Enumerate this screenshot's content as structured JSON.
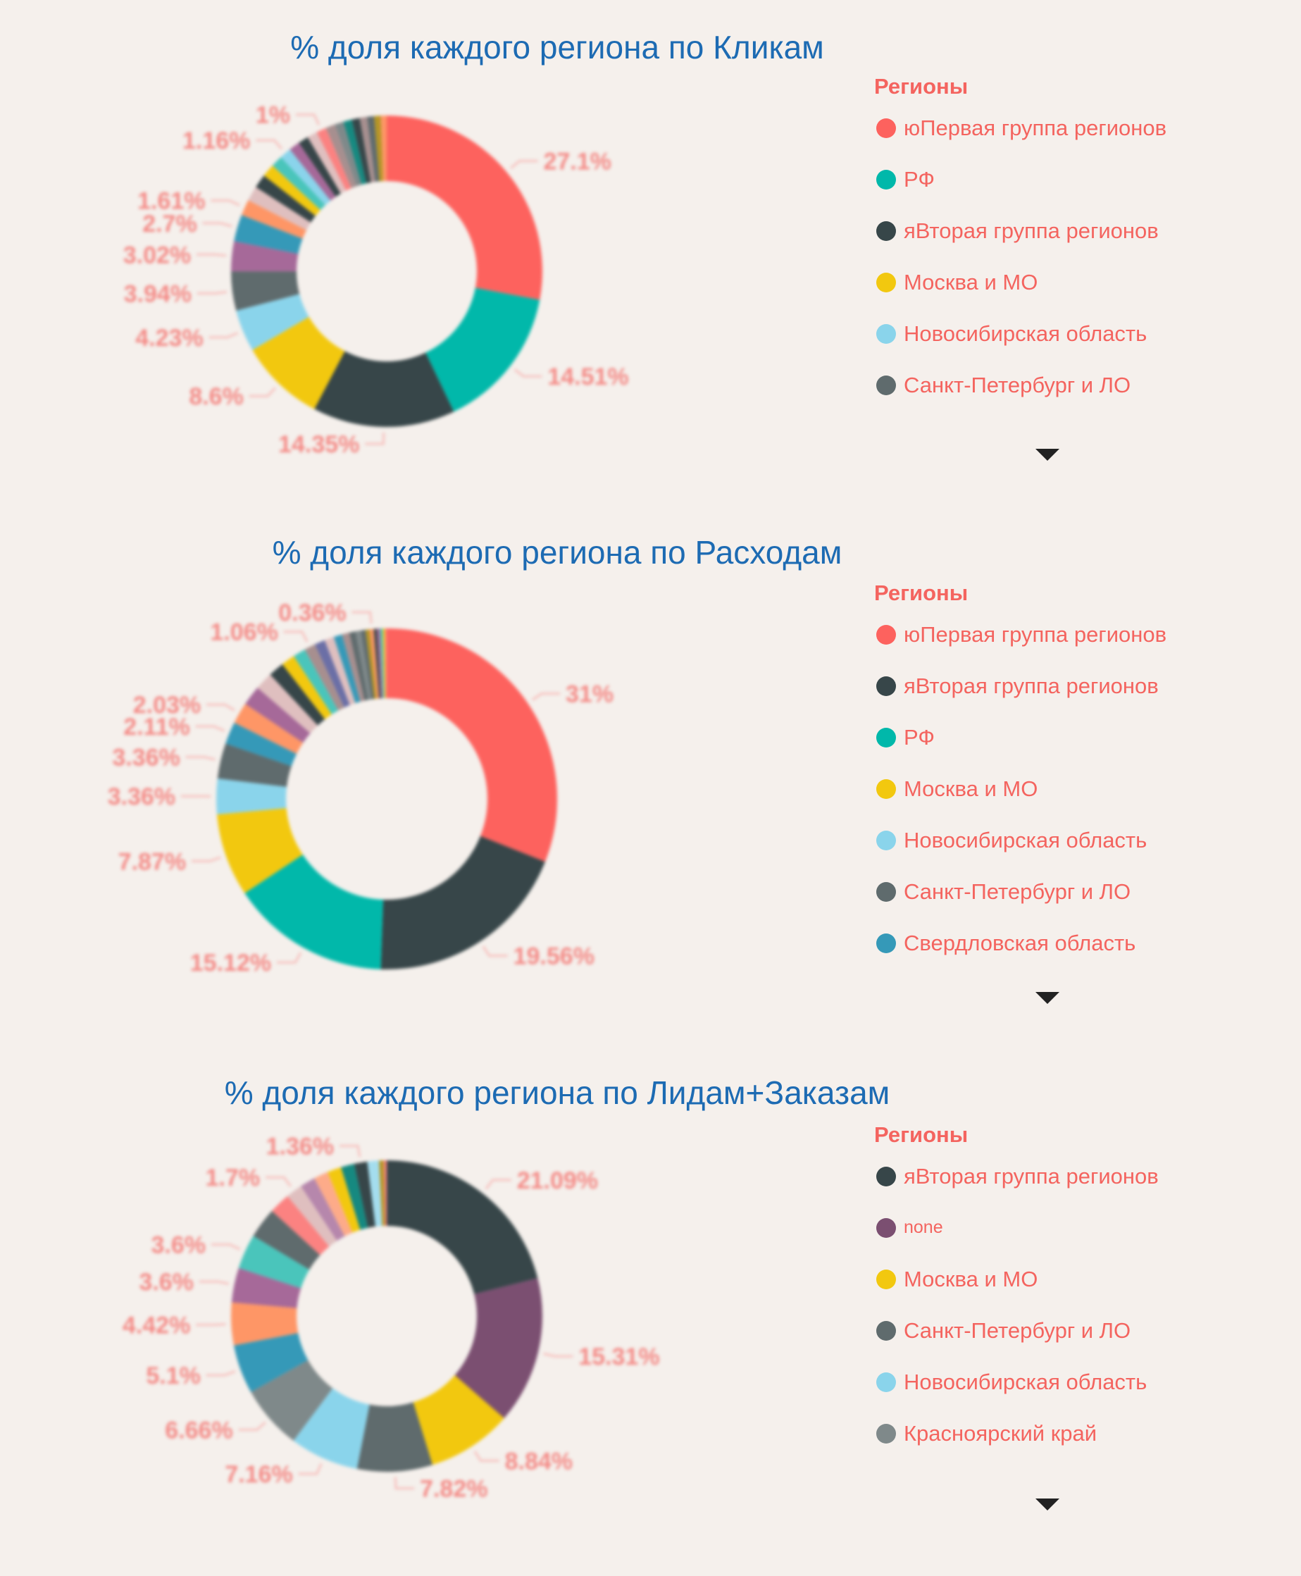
{
  "background": "#f5f0ec",
  "chart_data": [
    {
      "type": "pie",
      "donut": true,
      "title": "% доля каждого региона по Кликам",
      "legend_title": "Регионы",
      "legend_placement": "right",
      "legend": [
        {
          "name": "юПервая группа регионов",
          "color": "#fd625e"
        },
        {
          "name": "РФ",
          "color": "#01b8aa"
        },
        {
          "name": "яВторая группа регионов",
          "color": "#374649"
        },
        {
          "name": "Москва и МО",
          "color": "#f2c80f"
        },
        {
          "name": "Новосибирская область",
          "color": "#8ad4eb"
        },
        {
          "name": "Санкт-Петербург и ЛО",
          "color": "#5f6b6d"
        }
      ],
      "slices": [
        {
          "value": 27.1,
          "label": "27.1%",
          "color": "#fd625e"
        },
        {
          "value": 14.51,
          "label": "14.51%",
          "color": "#01b8aa"
        },
        {
          "value": 14.35,
          "label": "14.35%",
          "color": "#374649"
        },
        {
          "value": 8.6,
          "label": "8.6%",
          "color": "#f2c80f"
        },
        {
          "value": 4.23,
          "label": "4.23%",
          "color": "#8ad4eb"
        },
        {
          "value": 3.94,
          "label": "3.94%",
          "color": "#5f6b6d"
        },
        {
          "value": 3.02,
          "label": "3.02%",
          "color": "#a66999"
        },
        {
          "value": 2.7,
          "label": "2.7%",
          "color": "#3599b8"
        },
        {
          "value": 1.61,
          "label": "1.61%",
          "color": "#fe9666"
        },
        {
          "value": 1.5,
          "color": "#dfbfbf"
        },
        {
          "value": 1.4,
          "color": "#374649"
        },
        {
          "value": 1.3,
          "color": "#f2c80f"
        },
        {
          "value": 1.2,
          "color": "#4ac5bb"
        },
        {
          "value": 1.16,
          "label": "1.16%",
          "color": "#8ad4eb"
        },
        {
          "value": 1.1,
          "color": "#a66999"
        },
        {
          "value": 1.05,
          "color": "#374649"
        },
        {
          "value": 1.02,
          "color": "#dfbfbf"
        },
        {
          "value": 1,
          "label": "1%",
          "color": "#fb8281"
        },
        {
          "value": 0.95,
          "color": "#a78f8f"
        },
        {
          "value": 0.9,
          "color": "#7f898a"
        },
        {
          "value": 0.85,
          "color": "#168980"
        },
        {
          "value": 0.8,
          "color": "#374649"
        },
        {
          "value": 0.75,
          "color": "#a78f8f"
        },
        {
          "value": 0.7,
          "color": "#5f6b6d"
        },
        {
          "value": 0.65,
          "color": "#b59525"
        },
        {
          "value": 0.6,
          "color": "#fe9666"
        }
      ]
    },
    {
      "type": "pie",
      "donut": true,
      "title": "% доля каждого региона по Расходам",
      "legend_title": "Регионы",
      "legend_placement": "right",
      "legend": [
        {
          "name": "юПервая группа регионов",
          "color": "#fd625e"
        },
        {
          "name": "яВторая группа регионов",
          "color": "#374649"
        },
        {
          "name": "РФ",
          "color": "#01b8aa"
        },
        {
          "name": "Москва и МО",
          "color": "#f2c80f"
        },
        {
          "name": "Новосибирская область",
          "color": "#8ad4eb"
        },
        {
          "name": "Санкт-Петербург и ЛО",
          "color": "#5f6b6d"
        },
        {
          "name": "Свердловская область",
          "color": "#3599b8"
        }
      ],
      "slices": [
        {
          "value": 31,
          "label": "31%",
          "color": "#fd625e"
        },
        {
          "value": 19.56,
          "label": "19.56%",
          "color": "#374649"
        },
        {
          "value": 15.12,
          "label": "15.12%",
          "color": "#01b8aa"
        },
        {
          "value": 7.87,
          "label": "7.87%",
          "color": "#f2c80f"
        },
        {
          "value": 3.36,
          "label": "3.36%",
          "color": "#8ad4eb"
        },
        {
          "value": 3.36,
          "label": "3.36%",
          "color": "#5f6b6d"
        },
        {
          "value": 2.11,
          "label": "2.11%",
          "color": "#3599b8"
        },
        {
          "value": 2.03,
          "label": "2.03%",
          "color": "#fe9666"
        },
        {
          "value": 1.9,
          "color": "#a66999"
        },
        {
          "value": 1.7,
          "color": "#dfbfbf"
        },
        {
          "value": 1.5,
          "color": "#374649"
        },
        {
          "value": 1.3,
          "color": "#f2c80f"
        },
        {
          "value": 1.2,
          "color": "#4ac5bb"
        },
        {
          "value": 1.06,
          "label": "1.06%",
          "color": "#a78f8f"
        },
        {
          "value": 1.0,
          "color": "#6b6fa6"
        },
        {
          "value": 0.9,
          "color": "#dfbfbf"
        },
        {
          "value": 0.8,
          "color": "#3599b8"
        },
        {
          "value": 0.7,
          "color": "#a78f8f"
        },
        {
          "value": 0.6,
          "color": "#5f6b6d"
        },
        {
          "value": 0.5,
          "color": "#7f898a"
        },
        {
          "value": 0.45,
          "color": "#5f6b6d"
        },
        {
          "value": 0.4,
          "color": "#b59525"
        },
        {
          "value": 0.36,
          "label": "0.36%",
          "color": "#fe9666"
        },
        {
          "value": 0.3,
          "color": "#374649"
        },
        {
          "value": 0.3,
          "color": "#a66999"
        },
        {
          "value": 0.25,
          "color": "#4ac5bb"
        },
        {
          "value": 0.2,
          "color": "#f2c80f"
        },
        {
          "value": 0.17,
          "color": "#fb8281"
        }
      ]
    },
    {
      "type": "pie",
      "donut": true,
      "title": "% доля каждого региона по Лидам+Заказам",
      "legend_title": "Регионы",
      "legend_placement": "right",
      "legend": [
        {
          "name": "яВторая группа регионов",
          "color": "#374649"
        },
        {
          "name": "none",
          "color": "#7b4f71"
        },
        {
          "name": "Москва и МО",
          "color": "#f2c80f"
        },
        {
          "name": "Санкт-Петербург и ЛО",
          "color": "#5f6b6d"
        },
        {
          "name": "Новосибирская область",
          "color": "#8ad4eb"
        },
        {
          "name": "Красноярский край",
          "color": "#7f898a"
        }
      ],
      "slices": [
        {
          "value": 21.09,
          "label": "21.09%",
          "color": "#374649"
        },
        {
          "value": 15.31,
          "label": "15.31%",
          "color": "#7b4f71"
        },
        {
          "value": 8.84,
          "label": "8.84%",
          "color": "#f2c80f"
        },
        {
          "value": 7.82,
          "label": "7.82%",
          "color": "#5f6b6d"
        },
        {
          "value": 7.16,
          "label": "7.16%",
          "color": "#8ad4eb"
        },
        {
          "value": 6.66,
          "label": "6.66%",
          "color": "#7f898a"
        },
        {
          "value": 5.1,
          "label": "5.1%",
          "color": "#3599b8"
        },
        {
          "value": 4.42,
          "label": "4.42%",
          "color": "#fe9666"
        },
        {
          "value": 3.6,
          "label": "3.6%",
          "color": "#a66999"
        },
        {
          "value": 3.6,
          "label": "3.6%",
          "color": "#4ac5bb"
        },
        {
          "value": 3.2,
          "color": "#5f6b6d"
        },
        {
          "value": 2.2,
          "color": "#fb8281"
        },
        {
          "value": 1.7,
          "label": "1.7%",
          "color": "#dfbfbf"
        },
        {
          "value": 1.6,
          "color": "#b687ac"
        },
        {
          "value": 1.5,
          "color": "#fdab89"
        },
        {
          "value": 1.45,
          "color": "#f2c80f"
        },
        {
          "value": 1.4,
          "color": "#168980"
        },
        {
          "value": 1.36,
          "label": "1.36%",
          "color": "#374649"
        },
        {
          "value": 1.2,
          "color": "#a4ddee"
        },
        {
          "value": 0.5,
          "color": "#b59525"
        },
        {
          "value": 0.29,
          "color": "#fb8281"
        }
      ]
    }
  ]
}
